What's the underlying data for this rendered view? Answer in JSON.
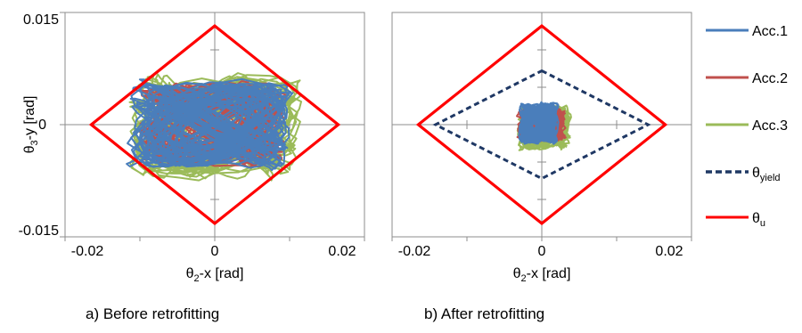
{
  "chart_data": [
    {
      "id": "a",
      "type": "line",
      "subcaption": "a) Before retrofitting",
      "xlabel": {
        "main": "θ",
        "sub": "2",
        "rest": "-x [rad]"
      },
      "ylabel": {
        "main": "θ",
        "sub": "3",
        "rest": "-y [rad]"
      },
      "xlim": [
        -0.02,
        0.02
      ],
      "ylim": [
        -0.015,
        0.015
      ],
      "x_ticks": [
        -0.02,
        0,
        0.02
      ],
      "x_tick_labels": [
        "-0.02",
        "0",
        "0.02"
      ],
      "y_ticks": [
        -0.015,
        0,
        0.015
      ],
      "y_tick_labels": [
        "-0.015",
        "0",
        "0.015"
      ],
      "grid": false,
      "series": [
        {
          "name": "Acc.1",
          "color": "#4a7ebb",
          "shape": "dense-orbit",
          "amp_x": 0.012,
          "amp_y": 0.0065,
          "center": [
            -0.0005,
            0.0
          ]
        },
        {
          "name": "Acc.2",
          "color": "#c0504d",
          "shape": "dense-orbit",
          "amp_x": 0.0105,
          "amp_y": 0.0063,
          "center": [
            -0.0003,
            0.0
          ]
        },
        {
          "name": "Acc.3",
          "color": "#9bbb59",
          "shape": "dense-orbit",
          "amp_x": 0.0125,
          "amp_y": 0.0077,
          "center": [
            0.0,
            -0.0003
          ]
        }
      ],
      "envelopes": [
        {
          "name": "θu",
          "color": "#ff0000",
          "style": "solid",
          "x_extent": 0.0165,
          "y_extent": 0.0132
        }
      ]
    },
    {
      "id": "b",
      "type": "line",
      "subcaption": "b) After retrofitting",
      "xlabel": {
        "main": "θ",
        "sub": "2",
        "rest": "-x [rad]"
      },
      "xlim": [
        -0.02,
        0.02
      ],
      "ylim": [
        -0.015,
        0.015
      ],
      "x_ticks": [
        -0.02,
        0,
        0.02
      ],
      "x_tick_labels": [
        "-0.02",
        "0",
        "0.02"
      ],
      "grid": false,
      "series": [
        {
          "name": "Acc.1",
          "color": "#4a7ebb",
          "shape": "dense-orbit",
          "amp_x": 0.0028,
          "amp_y": 0.003,
          "center": [
            -0.0004,
            0.0002
          ]
        },
        {
          "name": "Acc.2",
          "color": "#c0504d",
          "shape": "dense-orbit",
          "amp_x": 0.0035,
          "amp_y": 0.0025,
          "center": [
            0.0,
            0.0
          ]
        },
        {
          "name": "Acc.3",
          "color": "#9bbb59",
          "shape": "dense-orbit",
          "amp_x": 0.0038,
          "amp_y": 0.0032,
          "center": [
            0.0003,
            -0.0004
          ]
        }
      ],
      "envelopes": [
        {
          "name": "θyield",
          "color": "#1f3864",
          "style": "dashed",
          "x_extent": 0.0142,
          "y_extent": 0.0072
        },
        {
          "name": "θu",
          "color": "#ff0000",
          "style": "solid",
          "x_extent": 0.0165,
          "y_extent": 0.0132
        }
      ]
    }
  ],
  "legend": {
    "placement": "right",
    "items": [
      {
        "label": "Acc.1",
        "color": "#4a7ebb",
        "style": "solid"
      },
      {
        "label": "Acc.2",
        "color": "#c0504d",
        "style": "solid"
      },
      {
        "label": "Acc.3",
        "color": "#9bbb59",
        "style": "solid"
      },
      {
        "label_main": "θ",
        "label_sub": "yield",
        "color": "#1f3864",
        "style": "dashed"
      },
      {
        "label_main": "θ",
        "label_sub": "u",
        "color": "#ff0000",
        "style": "solid"
      }
    ]
  }
}
